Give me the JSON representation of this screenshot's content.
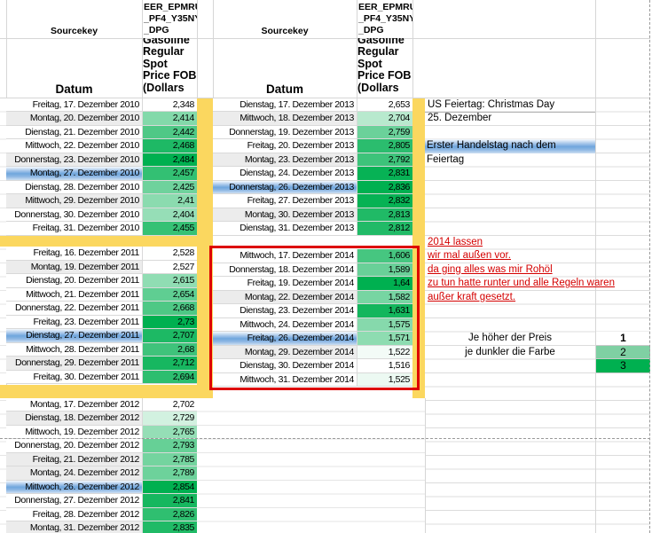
{
  "header": {
    "sourcekey_label": "Sourcekey",
    "series_code": "EER_EPMRU\n_PF4_Y35NY\n_DPG",
    "datum_label": "Datum",
    "series_name": "Gasoline\nRegular\nSpot\nPrice FOB\n(Dollars"
  },
  "left_blocks": [
    {
      "rows": [
        {
          "date": "Freitag, 17. Dezember 2010",
          "value": "2,348",
          "hl": ""
        },
        {
          "date": "Montag, 20. Dezember 2010",
          "value": "2,414",
          "hl": "shade"
        },
        {
          "date": "Dienstag, 21. Dezember 2010",
          "value": "2,442",
          "hl": ""
        },
        {
          "date": "Mittwoch, 22. Dezember 2010",
          "value": "2,468",
          "hl": ""
        },
        {
          "date": "Donnerstag, 23. Dezember 2010",
          "value": "2,484",
          "hl": "shade"
        },
        {
          "date": "Montag, 27. Dezember 2010",
          "value": "2,457",
          "hl": "blue"
        },
        {
          "date": "Dienstag, 28. Dezember 2010",
          "value": "2,425",
          "hl": ""
        },
        {
          "date": "Mittwoch, 29. Dezember 2010",
          "value": "2,41",
          "hl": "shade"
        },
        {
          "date": "Donnerstag, 30. Dezember 2010",
          "value": "2,404",
          "hl": ""
        },
        {
          "date": "Freitag, 31. Dezember 2010",
          "value": "2,455",
          "hl": ""
        }
      ]
    },
    {
      "rows": [
        {
          "date": "Freitag, 16. Dezember 2011",
          "value": "2,528",
          "hl": ""
        },
        {
          "date": "Montag, 19. Dezember 2011",
          "value": "2,527",
          "hl": "shade"
        },
        {
          "date": "Dienstag, 20. Dezember 2011",
          "value": "2,615",
          "hl": ""
        },
        {
          "date": "Mittwoch, 21. Dezember 2011",
          "value": "2,654",
          "hl": ""
        },
        {
          "date": "Donnerstag, 22. Dezember 2011",
          "value": "2,668",
          "hl": ""
        },
        {
          "date": "Freitag, 23. Dezember 2011",
          "value": "2,73",
          "hl": ""
        },
        {
          "date": "Dienstag, 27. Dezember 2011",
          "value": "2,707",
          "hl": "blue"
        },
        {
          "date": "Mittwoch, 28. Dezember 2011",
          "value": "2,68",
          "hl": ""
        },
        {
          "date": "Donnerstag, 29. Dezember 2011",
          "value": "2,712",
          "hl": "shade"
        },
        {
          "date": "Freitag, 30. Dezember 2011",
          "value": "2,694",
          "hl": ""
        }
      ]
    },
    {
      "rows": [
        {
          "date": "Montag, 17. Dezember 2012",
          "value": "2,702",
          "hl": ""
        },
        {
          "date": "Dienstag, 18. Dezember 2012",
          "value": "2,729",
          "hl": "shade"
        },
        {
          "date": "Mittwoch, 19. Dezember 2012",
          "value": "2,765",
          "hl": ""
        },
        {
          "date": "Donnerstag, 20. Dezember 2012",
          "value": "2,793",
          "hl": ""
        },
        {
          "date": "Freitag, 21. Dezember 2012",
          "value": "2,785",
          "hl": "shade"
        },
        {
          "date": "Montag, 24. Dezember 2012",
          "value": "2,789",
          "hl": "shade"
        },
        {
          "date": "Mittwoch, 26. Dezember 2012",
          "value": "2,854",
          "hl": "blue"
        },
        {
          "date": "Donnerstag, 27. Dezember 2012",
          "value": "2,841",
          "hl": ""
        },
        {
          "date": "Freitag, 28. Dezember 2012",
          "value": "2,826",
          "hl": ""
        },
        {
          "date": "Montag, 31. Dezember 2012",
          "value": "2,835",
          "hl": "shade"
        }
      ]
    }
  ],
  "middle_blocks": [
    {
      "rows": [
        {
          "date": "Dienstag, 17. Dezember 2013",
          "value": "2,653",
          "hl": ""
        },
        {
          "date": "Mittwoch, 18. Dezember 2013",
          "value": "2,704",
          "hl": "shade"
        },
        {
          "date": "Donnerstag, 19. Dezember 2013",
          "value": "2,759",
          "hl": ""
        },
        {
          "date": "Freitag, 20. Dezember 2013",
          "value": "2,805",
          "hl": ""
        },
        {
          "date": "Montag, 23. Dezember 2013",
          "value": "2,792",
          "hl": "shade"
        },
        {
          "date": "Dienstag, 24. Dezember 2013",
          "value": "2,831",
          "hl": ""
        },
        {
          "date": "Donnerstag, 26. Dezember 2013",
          "value": "2,836",
          "hl": "blue"
        },
        {
          "date": "Freitag, 27. Dezember 2013",
          "value": "2,832",
          "hl": ""
        },
        {
          "date": "Montag, 30. Dezember 2013",
          "value": "2,813",
          "hl": "shade"
        },
        {
          "date": "Dienstag, 31. Dezember 2013",
          "value": "2,812",
          "hl": ""
        }
      ]
    },
    {
      "rows": [
        {
          "date": "Mittwoch, 17. Dezember 2014",
          "value": "1,606",
          "hl": ""
        },
        {
          "date": "Donnerstag, 18. Dezember 2014",
          "value": "1,589",
          "hl": ""
        },
        {
          "date": "Freitag, 19. Dezember 2014",
          "value": "1,64",
          "hl": ""
        },
        {
          "date": "Montag, 22. Dezember 2014",
          "value": "1,582",
          "hl": "shade"
        },
        {
          "date": "Dienstag, 23. Dezember 2014",
          "value": "1,631",
          "hl": ""
        },
        {
          "date": "Mittwoch, 24. Dezember 2014",
          "value": "1,575",
          "hl": ""
        },
        {
          "date": "Freitag, 26. Dezember 2014",
          "value": "1,571",
          "hl": "blue"
        },
        {
          "date": "Montag, 29. Dezember 2014",
          "value": "1,522",
          "hl": "shade"
        },
        {
          "date": "Dienstag, 30. Dezember 2014",
          "value": "1,516",
          "hl": ""
        },
        {
          "date": "Mittwoch, 31. Dezember 2014",
          "value": "1,525",
          "hl": ""
        }
      ]
    }
  ],
  "notes": {
    "holiday_title": "US Feiertag: Christmas Day",
    "holiday_date": "25. Dezember",
    "banner": "Erster Handelstag nach dem Feiertag",
    "red_note": [
      "2014 lassen",
      "wir mal außen vor.",
      "da ging alles was mir Rohöl",
      "zu tun hatte runter und alle Regeln waren",
      "außer kraft gesetzt."
    ]
  },
  "legend": {
    "line1": "Je höher der Preis",
    "line2": "je dunkler die Farbe",
    "items": [
      {
        "label": "1",
        "color": "#ffffff"
      },
      {
        "label": "2",
        "color": "#7fd0a3"
      },
      {
        "label": "3",
        "color": "#00b050"
      }
    ]
  },
  "colors": {
    "scale_green_max": "#00b050",
    "separator_yellow": "#fbd75f",
    "highlight_blue": "#6fa6dd",
    "note_red": "#d40000",
    "box_border_red": "#dd0000"
  }
}
